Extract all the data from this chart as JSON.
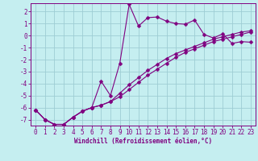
{
  "xlabel": "Windchill (Refroidissement éolien,°C)",
  "bg_color": "#c5eef0",
  "line_color": "#800080",
  "grid_color": "#9ecdd4",
  "xlim": [
    -0.5,
    23.5
  ],
  "ylim": [
    -7.5,
    2.7
  ],
  "yticks": [
    2,
    1,
    0,
    -1,
    -2,
    -3,
    -4,
    -5,
    -6,
    -7
  ],
  "xticks": [
    0,
    1,
    2,
    3,
    4,
    5,
    6,
    7,
    8,
    9,
    10,
    11,
    12,
    13,
    14,
    15,
    16,
    17,
    18,
    19,
    20,
    21,
    22,
    23
  ],
  "line1_x": [
    0,
    1,
    2,
    3,
    4,
    5,
    6,
    7,
    8,
    9,
    10,
    11,
    12,
    13,
    14,
    15,
    16,
    17,
    18,
    19,
    20,
    21,
    22,
    23
  ],
  "line1_y": [
    -6.2,
    -7.0,
    -7.4,
    -7.4,
    -6.8,
    -6.3,
    -6.0,
    -3.8,
    -5.0,
    -2.3,
    2.6,
    0.8,
    1.5,
    1.55,
    1.2,
    1.0,
    0.95,
    1.3,
    0.1,
    -0.2,
    0.15,
    -0.65,
    -0.5,
    -0.55
  ],
  "line2_x": [
    0,
    1,
    2,
    3,
    4,
    5,
    6,
    7,
    8,
    9,
    10,
    11,
    12,
    13,
    14,
    15,
    16,
    17,
    18,
    19,
    20,
    21,
    22,
    23
  ],
  "line2_y": [
    -6.2,
    -7.0,
    -7.4,
    -7.4,
    -6.8,
    -6.3,
    -6.0,
    -5.8,
    -5.5,
    -4.8,
    -4.1,
    -3.5,
    -2.9,
    -2.4,
    -1.9,
    -1.5,
    -1.2,
    -0.9,
    -0.6,
    -0.3,
    -0.1,
    0.1,
    0.3,
    0.4
  ],
  "line3_x": [
    0,
    1,
    2,
    3,
    4,
    5,
    6,
    7,
    8,
    9,
    10,
    11,
    12,
    13,
    14,
    15,
    16,
    17,
    18,
    19,
    20,
    21,
    22,
    23
  ],
  "line3_y": [
    -6.2,
    -7.0,
    -7.4,
    -7.4,
    -6.8,
    -6.3,
    -6.0,
    -5.8,
    -5.5,
    -5.1,
    -4.5,
    -3.9,
    -3.3,
    -2.8,
    -2.3,
    -1.8,
    -1.4,
    -1.1,
    -0.8,
    -0.5,
    -0.3,
    -0.1,
    0.1,
    0.3
  ],
  "tick_fontsize": 5.5,
  "xlabel_fontsize": 5.5,
  "marker_size": 2.5,
  "line_width": 0.8
}
